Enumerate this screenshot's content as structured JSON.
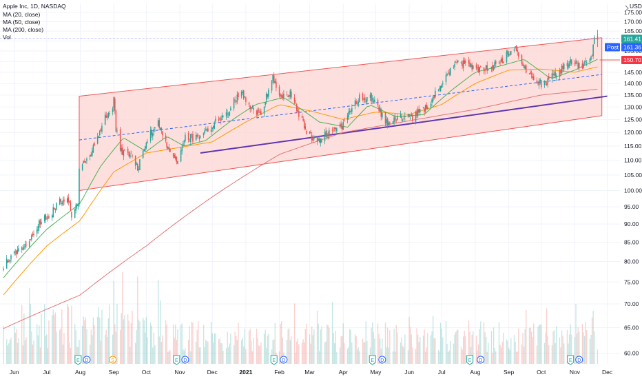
{
  "legend": {
    "title": "Apple Inc, 1D, NASDAQ",
    "ma20": "MA (20, close)",
    "ma50": "MA (50, close)",
    "ma200": "MA (200, close)",
    "vol": "Vol"
  },
  "currency_label": "USD",
  "price_badges": {
    "last": "161.41",
    "post_label": "Post",
    "post": "161.36",
    "level": "150.70"
  },
  "colors": {
    "up": "#26a69a",
    "down": "#ef5350",
    "ma20": "#4caf50",
    "ma50": "#ff9800",
    "ma200": "#e57373",
    "channel_fill": "#fcd5d3",
    "channel_edge": "#ef5350",
    "midline": "#2962ff",
    "support": "#5e35b1",
    "post_badge": "#2962ff",
    "earnings": "#26a69a",
    "dividend": "#2962ff",
    "split": "#ff9800"
  },
  "events": [
    {
      "label": "E",
      "kind": "earnings",
      "date": "2020-07-30"
    },
    {
      "label": "D",
      "kind": "dividend",
      "date": "2020-08-07"
    },
    {
      "label": "S",
      "kind": "split",
      "date": "2020-08-31"
    },
    {
      "label": "E",
      "kind": "earnings",
      "date": "2020-10-29"
    },
    {
      "label": "D",
      "kind": "dividend",
      "date": "2020-11-06"
    },
    {
      "label": "E",
      "kind": "earnings",
      "date": "2021-01-27"
    },
    {
      "label": "D",
      "kind": "dividend",
      "date": "2021-02-05"
    },
    {
      "label": "E",
      "kind": "earnings",
      "date": "2021-04-28"
    },
    {
      "label": "D",
      "kind": "dividend",
      "date": "2021-05-07"
    },
    {
      "label": "E",
      "kind": "earnings",
      "date": "2021-07-27"
    },
    {
      "label": "D",
      "kind": "dividend",
      "date": "2021-08-06"
    },
    {
      "label": "E",
      "kind": "earnings",
      "date": "2021-10-28"
    },
    {
      "label": "D",
      "kind": "dividend",
      "date": "2021-11-05"
    }
  ],
  "chart_data": {
    "type": "candlestick",
    "title": "Apple Inc, 1D, NASDAQ",
    "ylabel": "USD",
    "y_scale": "log",
    "ylim": [
      58,
      180
    ],
    "y_ticks": [
      60,
      65,
      70,
      75,
      80,
      85,
      90,
      95,
      100,
      105,
      110,
      115,
      120,
      125,
      130,
      135,
      140,
      145,
      150,
      155,
      160,
      165,
      170,
      175
    ],
    "x_ticks": [
      {
        "label": "Jun",
        "date": "2020-06-01"
      },
      {
        "label": "Jul",
        "date": "2020-07-01"
      },
      {
        "label": "Aug",
        "date": "2020-08-01"
      },
      {
        "label": "Sep",
        "date": "2020-09-01"
      },
      {
        "label": "Oct",
        "date": "2020-10-01"
      },
      {
        "label": "Nov",
        "date": "2020-11-01"
      },
      {
        "label": "Dec",
        "date": "2020-12-01"
      },
      {
        "label": "2021",
        "date": "2021-01-01",
        "bold": true
      },
      {
        "label": "Feb",
        "date": "2021-02-01"
      },
      {
        "label": "Mar",
        "date": "2021-03-01"
      },
      {
        "label": "Apr",
        "date": "2021-04-01"
      },
      {
        "label": "May",
        "date": "2021-05-01"
      },
      {
        "label": "Jun",
        "date": "2021-06-01"
      },
      {
        "label": "Jul",
        "date": "2021-07-01"
      },
      {
        "label": "Aug",
        "date": "2021-08-01"
      },
      {
        "label": "Sep",
        "date": "2021-09-01"
      },
      {
        "label": "Oct",
        "date": "2021-10-01"
      },
      {
        "label": "Nov",
        "date": "2021-11-01"
      },
      {
        "label": "Dec",
        "date": "2021-12-01"
      }
    ],
    "close_anchors": [
      [
        "2020-05-22",
        79.2
      ],
      [
        "2020-06-05",
        82.9
      ],
      [
        "2020-06-15",
        85.7
      ],
      [
        "2020-06-24",
        90.0
      ],
      [
        "2020-07-06",
        93.5
      ],
      [
        "2020-07-14",
        97.0
      ],
      [
        "2020-07-22",
        97.2
      ],
      [
        "2020-07-24",
        92.6
      ],
      [
        "2020-07-30",
        96.0
      ],
      [
        "2020-07-31",
        106.3
      ],
      [
        "2020-08-12",
        113.0
      ],
      [
        "2020-08-24",
        125.9
      ],
      [
        "2020-08-31",
        129.0
      ],
      [
        "2020-09-01",
        134.2
      ],
      [
        "2020-09-03",
        120.9
      ],
      [
        "2020-09-08",
        113.0
      ],
      [
        "2020-09-16",
        112.1
      ],
      [
        "2020-09-23",
        107.1
      ],
      [
        "2020-10-01",
        116.8
      ],
      [
        "2020-10-12",
        124.4
      ],
      [
        "2020-10-19",
        115.9
      ],
      [
        "2020-10-30",
        108.9
      ],
      [
        "2020-11-06",
        118.7
      ],
      [
        "2020-11-20",
        117.3
      ],
      [
        "2020-12-01",
        122.7
      ],
      [
        "2020-12-15",
        127.9
      ],
      [
        "2020-12-28",
        136.7
      ],
      [
        "2021-01-04",
        129.4
      ],
      [
        "2021-01-15",
        127.1
      ],
      [
        "2021-01-26",
        143.2
      ],
      [
        "2021-02-01",
        134.1
      ],
      [
        "2021-02-12",
        135.4
      ],
      [
        "2021-02-25",
        120.9
      ],
      [
        "2021-03-08",
        116.4
      ],
      [
        "2021-03-19",
        119.9
      ],
      [
        "2021-03-31",
        122.2
      ],
      [
        "2021-04-16",
        134.2
      ],
      [
        "2021-04-28",
        133.6
      ],
      [
        "2021-05-12",
        122.8
      ],
      [
        "2021-05-21",
        125.4
      ],
      [
        "2021-06-04",
        126.0
      ],
      [
        "2021-06-18",
        130.5
      ],
      [
        "2021-07-02",
        140.0
      ],
      [
        "2021-07-14",
        149.2
      ],
      [
        "2021-07-26",
        148.9
      ],
      [
        "2021-08-06",
        146.1
      ],
      [
        "2021-08-20",
        148.2
      ],
      [
        "2021-09-07",
        156.7
      ],
      [
        "2021-09-20",
        142.9
      ],
      [
        "2021-10-04",
        139.1
      ],
      [
        "2021-10-15",
        144.8
      ],
      [
        "2021-10-29",
        149.8
      ],
      [
        "2021-11-10",
        147.9
      ],
      [
        "2021-11-16",
        151.0
      ],
      [
        "2021-11-19",
        160.5
      ],
      [
        "2021-11-22",
        161.4
      ]
    ],
    "ma20_anchors": [
      [
        "2020-05-22",
        76.0
      ],
      [
        "2020-07-01",
        88.5
      ],
      [
        "2020-08-01",
        96.0
      ],
      [
        "2020-08-20",
        108.0
      ],
      [
        "2020-09-10",
        118.0
      ],
      [
        "2020-10-01",
        113.0
      ],
      [
        "2020-10-20",
        118.5
      ],
      [
        "2020-11-05",
        115.0
      ],
      [
        "2020-11-25",
        117.0
      ],
      [
        "2020-12-20",
        125.0
      ],
      [
        "2021-01-10",
        131.0
      ],
      [
        "2021-02-05",
        134.0
      ],
      [
        "2021-03-10",
        124.0
      ],
      [
        "2021-04-05",
        122.0
      ],
      [
        "2021-04-25",
        131.0
      ],
      [
        "2021-05-20",
        126.0
      ],
      [
        "2021-06-15",
        127.0
      ],
      [
        "2021-07-10",
        137.0
      ],
      [
        "2021-08-01",
        145.0
      ],
      [
        "2021-08-25",
        148.0
      ],
      [
        "2021-09-15",
        151.0
      ],
      [
        "2021-10-10",
        142.0
      ],
      [
        "2021-11-01",
        146.0
      ],
      [
        "2021-11-22",
        151.0
      ]
    ],
    "ma50_anchors": [
      [
        "2020-05-22",
        72.0
      ],
      [
        "2020-07-01",
        84.0
      ],
      [
        "2020-08-01",
        91.0
      ],
      [
        "2020-09-01",
        106.0
      ],
      [
        "2020-10-01",
        112.5
      ],
      [
        "2020-11-01",
        114.5
      ],
      [
        "2020-12-01",
        116.5
      ],
      [
        "2021-01-01",
        124.0
      ],
      [
        "2021-02-01",
        131.0
      ],
      [
        "2021-03-01",
        128.5
      ],
      [
        "2021-04-01",
        125.0
      ],
      [
        "2021-05-01",
        128.0
      ],
      [
        "2021-06-01",
        127.0
      ],
      [
        "2021-07-01",
        131.0
      ],
      [
        "2021-08-01",
        140.0
      ],
      [
        "2021-09-01",
        146.0
      ],
      [
        "2021-10-01",
        146.5
      ],
      [
        "2021-11-01",
        145.0
      ],
      [
        "2021-11-22",
        147.5
      ]
    ],
    "ma200_anchors": [
      [
        "2020-05-22",
        64.8
      ],
      [
        "2020-08-01",
        72.0
      ],
      [
        "2020-10-01",
        84.0
      ],
      [
        "2020-12-01",
        98.0
      ],
      [
        "2021-02-01",
        112.0
      ],
      [
        "2021-04-01",
        120.0
      ],
      [
        "2021-06-01",
        124.5
      ],
      [
        "2021-08-01",
        129.0
      ],
      [
        "2021-10-01",
        135.0
      ],
      [
        "2021-11-22",
        137.5
      ]
    ],
    "channel": {
      "start": "2020-07-31",
      "end": "2021-11-26",
      "upper": [
        134.5,
        161.6
      ],
      "lower": [
        100.0,
        126.5
      ],
      "mid": [
        117.2,
        144.0
      ]
    },
    "support_line": {
      "start": "2020-11-20",
      "end": "2021-12-01",
      "values": [
        112.5,
        134.5
      ]
    },
    "horizontal_level": {
      "start": "2021-11-24",
      "value": 150.7
    },
    "last_price": 161.41,
    "post_price": 161.36,
    "volume_max_millions": 370
  }
}
